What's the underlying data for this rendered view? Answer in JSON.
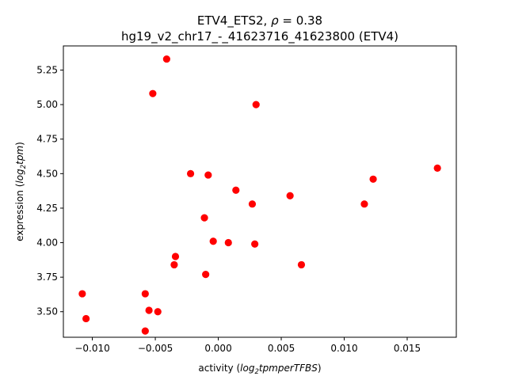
{
  "chart_data": {
    "type": "scatter",
    "title": {
      "line1_prefix": "ETV4_ETS2, ",
      "rho_symbol": "ρ",
      "rho_text": " = 0.38",
      "line2": "hg19_v2_chr17_-_41623716_41623800 (ETV4)"
    },
    "xlabel": {
      "prefix": "activity (",
      "log": "log",
      "sub": "2",
      "rest": "tpmperTFBS",
      "suffix": ")"
    },
    "ylabel": {
      "prefix": "expression (",
      "log": "log",
      "sub": "2",
      "rest": "tpm",
      "suffix": ")"
    },
    "xlim": [
      -0.0123,
      0.0189
    ],
    "ylim": [
      3.315,
      5.425
    ],
    "x_ticks": [
      {
        "value": -0.01,
        "label": "−0.010"
      },
      {
        "value": -0.005,
        "label": "−0.005"
      },
      {
        "value": 0.0,
        "label": "0.000"
      },
      {
        "value": 0.005,
        "label": "0.005"
      },
      {
        "value": 0.01,
        "label": "0.010"
      },
      {
        "value": 0.015,
        "label": "0.015"
      }
    ],
    "y_ticks": [
      {
        "value": 3.5,
        "label": "3.50"
      },
      {
        "value": 3.75,
        "label": "3.75"
      },
      {
        "value": 4.0,
        "label": "4.00"
      },
      {
        "value": 4.25,
        "label": "4.25"
      },
      {
        "value": 4.5,
        "label": "4.50"
      },
      {
        "value": 4.75,
        "label": "4.75"
      },
      {
        "value": 5.0,
        "label": "5.00"
      },
      {
        "value": 5.25,
        "label": "5.25"
      }
    ],
    "grid": false,
    "point_color": "#ff0000",
    "points": [
      {
        "x": -0.0108,
        "y": 3.63
      },
      {
        "x": -0.0105,
        "y": 3.45
      },
      {
        "x": -0.0058,
        "y": 3.63
      },
      {
        "x": -0.0055,
        "y": 3.51
      },
      {
        "x": -0.0048,
        "y": 3.5
      },
      {
        "x": -0.0058,
        "y": 3.36
      },
      {
        "x": -0.0052,
        "y": 5.08
      },
      {
        "x": -0.0041,
        "y": 5.33
      },
      {
        "x": -0.0035,
        "y": 3.84
      },
      {
        "x": -0.0034,
        "y": 3.9
      },
      {
        "x": -0.0022,
        "y": 4.5
      },
      {
        "x": -0.001,
        "y": 3.77
      },
      {
        "x": -0.0011,
        "y": 4.18
      },
      {
        "x": -0.0008,
        "y": 4.49
      },
      {
        "x": -0.0004,
        "y": 4.01
      },
      {
        "x": 0.0008,
        "y": 4.0
      },
      {
        "x": 0.0014,
        "y": 4.38
      },
      {
        "x": 0.0027,
        "y": 4.28
      },
      {
        "x": 0.0029,
        "y": 3.99
      },
      {
        "x": 0.003,
        "y": 5.0
      },
      {
        "x": 0.0057,
        "y": 4.34
      },
      {
        "x": 0.0066,
        "y": 3.84
      },
      {
        "x": 0.0116,
        "y": 4.28
      },
      {
        "x": 0.0123,
        "y": 4.46
      },
      {
        "x": 0.0174,
        "y": 4.54
      }
    ]
  }
}
